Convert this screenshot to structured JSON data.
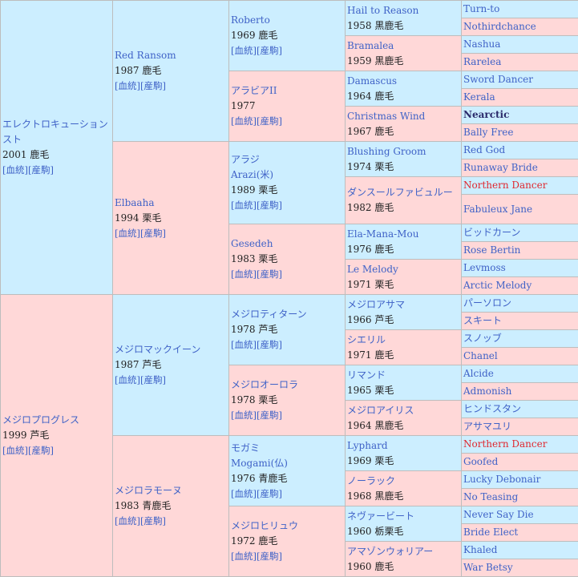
{
  "link_label_1": "[血統]",
  "link_label_2": "[産駒]",
  "pedigree": {
    "sire": {
      "name": "エレクトロキューションスト",
      "year_color": "2001 鹿毛",
      "sire": {
        "name": "Red Ransom",
        "year_color": "1987 鹿毛",
        "sire": {
          "name": "Roberto",
          "year_color": "1969 鹿毛",
          "sire": {
            "name": "Hail to Reason",
            "year_color": "1958 黒鹿毛",
            "sire": "Turn-to",
            "dam": "Nothirdchance"
          },
          "dam": {
            "name": "Bramalea",
            "year_color": "1959 黒鹿毛",
            "sire": "Nashua",
            "dam": "Rarelea"
          }
        },
        "dam": {
          "name": "アラビアII",
          "year_color": "1977",
          "sire": {
            "name": "Damascus",
            "year_color": "1964 鹿毛",
            "sire": "Sword Dancer",
            "dam": "Kerala"
          },
          "dam": {
            "name": "Christmas Wind",
            "year_color": "1967 鹿毛",
            "sire": "Nearctic",
            "dam": "Bally Free"
          }
        }
      },
      "dam": {
        "name": "Elbaaha",
        "year_color": "1994 栗毛",
        "sire": {
          "name": "アラジ",
          "alt_name": "Arazi(米)",
          "year_color": "1989 栗毛",
          "sire": {
            "name": "Blushing Groom",
            "year_color": "1974 栗毛",
            "sire": "Red God",
            "dam": "Runaway Bride"
          },
          "dam": {
            "name": "ダンスールファビュルー",
            "year_color": "1982 鹿毛",
            "sire": "Northern Dancer",
            "dam": "Fabuleux Jane"
          }
        },
        "dam": {
          "name": "Gesedeh",
          "year_color": "1983 栗毛",
          "sire": {
            "name": "Ela-Mana-Mou",
            "year_color": "1976 鹿毛",
            "sire": "ビッドカーン",
            "dam": "Rose Bertin"
          },
          "dam": {
            "name": "Le Melody",
            "year_color": "1971 栗毛",
            "sire": "Levmoss",
            "dam": "Arctic Melody"
          }
        }
      }
    },
    "dam": {
      "name": "メジロプログレス",
      "year_color": "1999 芦毛",
      "sire": {
        "name": "メジロマックイーン",
        "year_color": "1987 芦毛",
        "sire": {
          "name": "メジロティターン",
          "year_color": "1978 芦毛",
          "sire": {
            "name": "メジロアサマ",
            "year_color": "1966 芦毛",
            "sire": "パーソロン",
            "dam": "スキート"
          },
          "dam": {
            "name": "シエリル",
            "year_color": "1971 鹿毛",
            "sire": "スノッブ",
            "dam": "Chanel"
          }
        },
        "dam": {
          "name": "メジロオーロラ",
          "year_color": "1978 栗毛",
          "sire": {
            "name": "リマンド",
            "year_color": "1965 栗毛",
            "sire": "Alcide",
            "dam": "Admonish"
          },
          "dam": {
            "name": "メジロアイリス",
            "year_color": "1964 黒鹿毛",
            "sire": "ヒンドスタン",
            "dam": "アサマユリ"
          }
        }
      },
      "dam": {
        "name": "メジロラモーヌ",
        "year_color": "1983 青鹿毛",
        "sire": {
          "name": "モガミ",
          "alt_name": "Mogami(仏)",
          "year_color": "1976 青鹿毛",
          "sire": {
            "name": "Lyphard",
            "year_color": "1969 栗毛",
            "sire": "Northern Dancer",
            "dam": "Goofed"
          },
          "dam": {
            "name": "ノーラック",
            "year_color": "1968 黒鹿毛",
            "sire": "Lucky Debonair",
            "dam": "No Teasing"
          }
        },
        "dam": {
          "name": "メジロヒリュウ",
          "year_color": "1972 鹿毛",
          "sire": {
            "name": "ネヴァービート",
            "year_color": "1960 栃栗毛",
            "sire": "Never Say Die",
            "dam": "Bride Elect"
          },
          "dam": {
            "name": "アマゾンウォリアー",
            "year_color": "1960 鹿毛",
            "sire": "Khaled",
            "dam": "War Betsy"
          }
        }
      }
    }
  }
}
